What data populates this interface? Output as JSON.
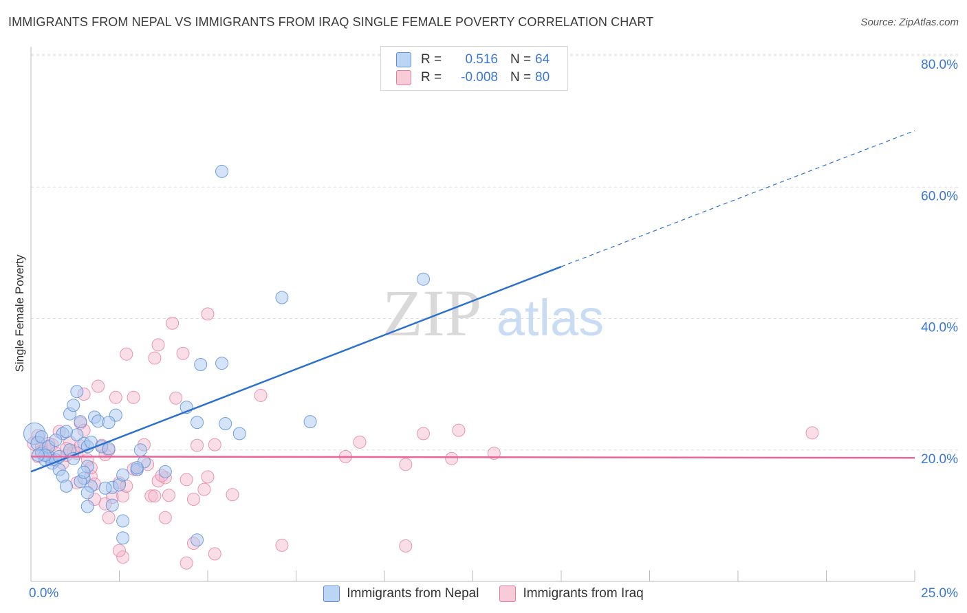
{
  "title": "IMMIGRANTS FROM NEPAL VS IMMIGRANTS FROM IRAQ SINGLE FEMALE POVERTY CORRELATION CHART",
  "source": "Source: ZipAtlas.com",
  "watermark": {
    "zip": "ZIP",
    "atlas": "atlas"
  },
  "legend": {
    "r_label": "R =",
    "n_label": "N =",
    "nepal": {
      "r": "0.516",
      "n": "64"
    },
    "iraq": {
      "r": "-0.008",
      "n": "80"
    }
  },
  "colors": {
    "nepal_fill": "#a9c8ef",
    "nepal_stroke": "#5b8fd6",
    "nepal_line": "#2b6fcf",
    "iraq_fill": "#f4b6c9",
    "iraq_stroke": "#e07ea0",
    "iraq_line": "#e8659a",
    "axis_text": "#3a78d4",
    "grid": "#dddddd"
  },
  "chart_data": {
    "type": "scatter",
    "title": "IMMIGRANTS FROM NEPAL VS IMMIGRANTS FROM IRAQ SINGLE FEMALE POVERTY CORRELATION CHART",
    "xlabel": "",
    "ylabel": "Single Female Poverty",
    "xlim": [
      0,
      25
    ],
    "ylim": [
      0,
      80
    ],
    "x_tick_labels": [
      "0.0%",
      "25.0%"
    ],
    "y_tick_labels": [
      "20.0%",
      "40.0%",
      "60.0%",
      "80.0%"
    ],
    "y_ticks": [
      20,
      40,
      60,
      80
    ],
    "legend_position": "bottom",
    "series": [
      {
        "name": "Immigrants from Nepal",
        "trend": {
          "x0": 0,
          "y0": 16.7,
          "x1": 15,
          "y1": 47.9,
          "dashed_to_x": 25,
          "dashed_to_y": 68.6
        },
        "points": [
          [
            0.1,
            22.5
          ],
          [
            0.2,
            21.0
          ],
          [
            0.3,
            19.5
          ],
          [
            0.4,
            18.5
          ],
          [
            0.5,
            19.0
          ],
          [
            0.6,
            18.0
          ],
          [
            0.7,
            18.5
          ],
          [
            0.8,
            17.0
          ],
          [
            0.9,
            16.0
          ],
          [
            1.0,
            14.5
          ],
          [
            0.3,
            22.0
          ],
          [
            0.5,
            20.5
          ],
          [
            0.9,
            22.5
          ],
          [
            1.1,
            20.0
          ],
          [
            1.1,
            25.5
          ],
          [
            1.2,
            26.8
          ],
          [
            1.3,
            28.9
          ],
          [
            1.4,
            24.3
          ],
          [
            1.3,
            22.3
          ],
          [
            1.5,
            21.0
          ],
          [
            1.6,
            20.5
          ],
          [
            1.7,
            21.2
          ],
          [
            1.8,
            25.0
          ],
          [
            1.9,
            24.4
          ],
          [
            2.0,
            20.5
          ],
          [
            2.2,
            20.2
          ],
          [
            2.4,
            25.3
          ],
          [
            2.2,
            24.2
          ],
          [
            1.7,
            14.5
          ],
          [
            1.6,
            17.5
          ],
          [
            1.5,
            15.7
          ],
          [
            1.4,
            15.2
          ],
          [
            1.6,
            13.5
          ],
          [
            2.3,
            14.3
          ],
          [
            2.5,
            14.7
          ],
          [
            2.1,
            14.2
          ],
          [
            2.3,
            11.6
          ],
          [
            1.6,
            11.4
          ],
          [
            1.5,
            16.6
          ],
          [
            2.6,
            16.2
          ],
          [
            3.2,
            18.2
          ],
          [
            3.0,
            17.0
          ],
          [
            3.1,
            20.0
          ],
          [
            3.8,
            16.7
          ],
          [
            4.4,
            26.5
          ],
          [
            4.7,
            24.2
          ],
          [
            5.5,
            24.0
          ],
          [
            5.9,
            22.5
          ],
          [
            4.7,
            6.3
          ],
          [
            2.6,
            6.6
          ],
          [
            2.6,
            9.2
          ],
          [
            4.8,
            33.0
          ],
          [
            5.4,
            33.2
          ],
          [
            7.1,
            43.2
          ],
          [
            7.9,
            24.3
          ],
          [
            11.1,
            46.0
          ],
          [
            5.4,
            62.4
          ],
          [
            0.8,
            19.0
          ],
          [
            0.4,
            19.2
          ],
          [
            1.0,
            22.8
          ],
          [
            0.7,
            21.5
          ],
          [
            0.2,
            19.2
          ],
          [
            1.2,
            18.7
          ],
          [
            3.0,
            17.3
          ]
        ],
        "sizes": [
          22,
          14,
          12,
          12,
          12,
          12,
          12,
          12,
          12,
          12,
          12,
          12,
          12,
          12,
          12,
          12,
          12,
          12,
          12,
          12,
          12,
          12,
          12,
          12,
          12,
          12,
          12,
          12,
          12,
          12,
          12,
          12,
          12,
          12,
          12,
          12,
          12,
          12,
          12,
          12,
          12,
          12,
          12,
          12,
          12,
          12,
          12,
          12,
          12,
          12,
          12,
          12,
          12,
          12,
          12,
          12,
          12,
          12,
          12,
          12,
          12,
          12,
          12,
          12
        ]
      },
      {
        "name": "Immigrants from Iraq",
        "trend": {
          "x0": 0,
          "y0": 19.0,
          "x1": 25,
          "y1": 18.8
        },
        "points": [
          [
            0.1,
            21.0
          ],
          [
            0.2,
            22.2
          ],
          [
            0.3,
            20.5
          ],
          [
            0.4,
            20.2
          ],
          [
            0.5,
            21.0
          ],
          [
            0.6,
            20.8
          ],
          [
            0.7,
            19.5
          ],
          [
            0.8,
            22.8
          ],
          [
            0.9,
            18.0
          ],
          [
            1.0,
            19.2
          ],
          [
            1.1,
            21.2
          ],
          [
            1.2,
            19.8
          ],
          [
            1.3,
            19.5
          ],
          [
            1.4,
            24.1
          ],
          [
            1.5,
            28.5
          ],
          [
            1.5,
            23.0
          ],
          [
            1.6,
            18.5
          ],
          [
            1.7,
            16.0
          ],
          [
            1.8,
            14.8
          ],
          [
            1.9,
            29.7
          ],
          [
            2.0,
            20.7
          ],
          [
            2.1,
            19.3
          ],
          [
            2.2,
            20.0
          ],
          [
            2.3,
            12.8
          ],
          [
            2.4,
            28.0
          ],
          [
            2.5,
            15.0
          ],
          [
            2.6,
            13.0
          ],
          [
            2.7,
            34.6
          ],
          [
            2.9,
            28.0
          ],
          [
            3.0,
            17.0
          ],
          [
            3.2,
            20.8
          ],
          [
            3.4,
            13.0
          ],
          [
            3.5,
            34.0
          ],
          [
            3.6,
            36.0
          ],
          [
            3.6,
            15.3
          ],
          [
            3.8,
            15.8
          ],
          [
            4.0,
            39.3
          ],
          [
            4.1,
            27.9
          ],
          [
            4.3,
            34.7
          ],
          [
            4.4,
            15.5
          ],
          [
            4.6,
            12.5
          ],
          [
            4.7,
            20.7
          ],
          [
            5.0,
            40.7
          ],
          [
            4.9,
            14.0
          ],
          [
            5.2,
            20.8
          ],
          [
            5.7,
            13.2
          ],
          [
            6.5,
            28.3
          ],
          [
            7.1,
            5.5
          ],
          [
            8.9,
            19.0
          ],
          [
            9.3,
            21.2
          ],
          [
            10.6,
            5.4
          ],
          [
            10.6,
            17.8
          ],
          [
            11.1,
            22.5
          ],
          [
            11.9,
            18.7
          ],
          [
            12.1,
            23.0
          ],
          [
            13.1,
            19.5
          ],
          [
            22.1,
            22.6
          ],
          [
            1.8,
            12.5
          ],
          [
            2.2,
            9.7
          ],
          [
            3.3,
            17.8
          ],
          [
            3.8,
            9.7
          ],
          [
            4.6,
            5.8
          ],
          [
            5.2,
            4.2
          ],
          [
            3.5,
            13.0
          ],
          [
            2.6,
            3.7
          ],
          [
            2.5,
            4.7
          ],
          [
            4.4,
            2.8
          ],
          [
            1.3,
            15.0
          ],
          [
            1.0,
            20.2
          ],
          [
            0.2,
            19.0
          ],
          [
            2.1,
            11.8
          ],
          [
            2.7,
            14.5
          ],
          [
            3.9,
            13.1
          ],
          [
            0.6,
            18.5
          ],
          [
            1.4,
            20.6
          ],
          [
            2.9,
            17.1
          ],
          [
            3.7,
            16.1
          ],
          [
            5.0,
            15.9
          ],
          [
            0.3,
            19.8
          ],
          [
            1.7,
            17.3
          ]
        ],
        "sizes": [
          14,
          12,
          12,
          12,
          12,
          12,
          12,
          12,
          12,
          12,
          12,
          12,
          12,
          12,
          12,
          12,
          12,
          12,
          12,
          12,
          12,
          12,
          12,
          12,
          12,
          12,
          12,
          12,
          12,
          12,
          12,
          12,
          12,
          12,
          12,
          12,
          12,
          12,
          12,
          12,
          12,
          12,
          12,
          12,
          12,
          12,
          12,
          12,
          12,
          12,
          12,
          12,
          12,
          12,
          12,
          12,
          12,
          12,
          12,
          12,
          12,
          12,
          12,
          12,
          12,
          12,
          12,
          12,
          12,
          12,
          12,
          12,
          12,
          12,
          12,
          12,
          12,
          12,
          12,
          12
        ]
      }
    ]
  }
}
